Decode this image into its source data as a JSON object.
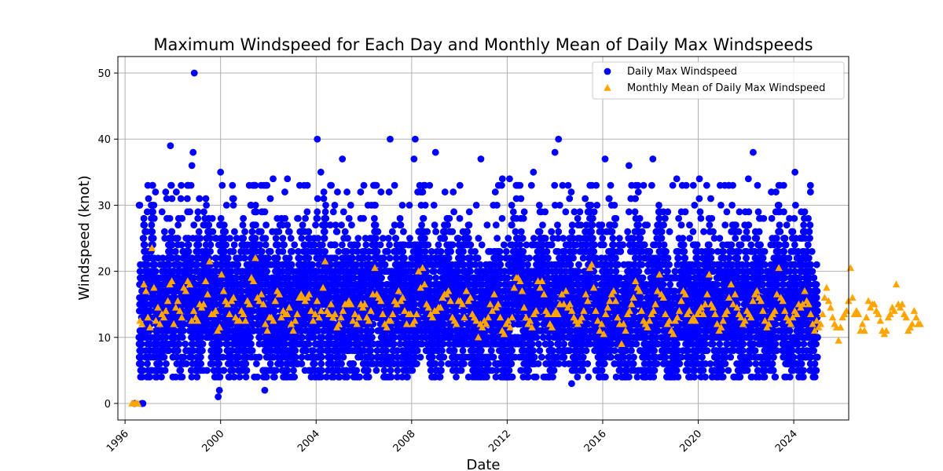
{
  "chart_data": {
    "type": "scatter",
    "title": "Maximum Windspeed for Each Day and Monthly Mean of Daily Max Windspeeds",
    "xlabel": "Date",
    "ylabel": "Windspeed (knot)",
    "xlim": [
      1995.7,
      2026.3
    ],
    "ylim": [
      -2.5,
      52.5
    ],
    "x_ticks": [
      "1996",
      "2000",
      "2004",
      "2008",
      "2012",
      "2016",
      "2020",
      "2024"
    ],
    "y_ticks": [
      "0",
      "10",
      "20",
      "30",
      "40",
      "50"
    ],
    "grid": true,
    "legend_position": "top-right",
    "series": [
      {
        "name": "Daily Max Windspeed",
        "marker": "circle",
        "color": "#0000ff",
        "note_points": [
          {
            "x": 1996.4,
            "y": 0
          },
          {
            "x": 1996.7,
            "y": 0
          },
          {
            "x": 1996.75,
            "y": 0
          },
          {
            "x": 1997.9,
            "y": 39
          },
          {
            "x": 1998.9,
            "y": 50
          },
          {
            "x": 1998.85,
            "y": 38
          },
          {
            "x": 1998.8,
            "y": 36
          },
          {
            "x": 1999.9,
            "y": 1
          },
          {
            "x": 1999.95,
            "y": 2
          },
          {
            "x": 2000,
            "y": 35
          },
          {
            "x": 2001.85,
            "y": 2
          },
          {
            "x": 2002.2,
            "y": 34
          },
          {
            "x": 2002.8,
            "y": 34
          },
          {
            "x": 2004.05,
            "y": 40
          },
          {
            "x": 2004.2,
            "y": 35
          },
          {
            "x": 2005.1,
            "y": 37
          },
          {
            "x": 2006,
            "y": 33
          },
          {
            "x": 2007.1,
            "y": 40
          },
          {
            "x": 2008.15,
            "y": 40
          },
          {
            "x": 2008.1,
            "y": 37
          },
          {
            "x": 2009,
            "y": 38
          },
          {
            "x": 2010.9,
            "y": 37
          },
          {
            "x": 2011.8,
            "y": 34
          },
          {
            "x": 2012.1,
            "y": 34
          },
          {
            "x": 2013.1,
            "y": 35
          },
          {
            "x": 2014,
            "y": 38
          },
          {
            "x": 2014.15,
            "y": 40
          },
          {
            "x": 2014.7,
            "y": 3
          },
          {
            "x": 2016.1,
            "y": 37
          },
          {
            "x": 2017.1,
            "y": 36
          },
          {
            "x": 2018.1,
            "y": 37
          },
          {
            "x": 2019.1,
            "y": 34
          },
          {
            "x": 2020.05,
            "y": 34
          },
          {
            "x": 2022.1,
            "y": 34
          },
          {
            "x": 2022.3,
            "y": 38
          },
          {
            "x": 2024.05,
            "y": 35
          },
          {
            "x": 2024.7,
            "y": 32
          }
        ]
      },
      {
        "name": "Monthly Mean of Daily Max Windspeed",
        "marker": "triangle",
        "color": "#ffa500",
        "monthly_values": [
          0,
          0,
          0,
          0,
          12.5,
          12,
          18,
          17,
          13,
          11.5,
          23.5,
          17.5,
          12.5,
          14.5,
          12,
          13.5,
          13,
          14,
          15.5,
          18,
          18.5,
          12,
          14.5,
          15.5,
          14,
          13,
          17.5,
          17,
          18.5,
          18,
          12.5,
          14,
          13,
          12.5,
          15,
          14.5,
          15,
          18.5,
          16.5,
          21.5,
          13.5,
          13.5,
          14,
          11,
          11.5,
          19.5,
          17,
          15.5,
          15,
          13.5,
          15.5,
          16,
          13,
          12.5,
          12.5,
          14,
          13.5,
          12.5,
          15.5,
          15,
          19,
          18.5,
          22,
          16,
          15.5,
          16.5,
          15,
          12,
          11,
          13,
          13,
          12.5,
          15.5,
          17,
          16.5,
          13,
          14,
          13.5,
          13.5,
          14.5,
          12,
          11,
          12.5,
          13.5,
          16,
          16.5,
          16,
          15.5,
          16,
          16.5,
          14,
          12.5,
          13.5,
          15.5,
          13,
          14,
          17.5,
          21.5,
          14,
          13.5,
          15,
          13,
          13.5,
          11.5,
          12,
          13,
          14,
          15,
          15,
          15.5,
          15,
          12.5,
          13.5,
          12,
          13,
          15,
          14.5,
          15,
          13,
          12.5,
          14,
          16.5,
          20.5,
          16.5,
          16,
          15.5,
          13.5,
          12,
          11.5,
          12.5,
          12.5,
          13.5,
          15.5,
          15,
          17,
          15.5,
          16,
          14,
          12,
          13.5,
          13.5,
          12,
          12.5,
          13.5,
          20,
          17.5,
          20.5,
          18,
          15,
          14.5,
          13.5,
          13,
          14,
          14,
          14.5,
          14.5,
          16,
          16.5,
          16.5,
          17,
          15.5,
          13,
          12.5,
          12,
          15.5,
          15.5,
          15,
          13,
          17,
          15.5,
          16,
          13.5,
          13,
          12.5,
          10,
          12,
          11.5,
          12.5,
          12,
          13,
          15,
          14,
          16.5,
          14.5,
          15,
          13,
          11,
          10.5,
          12,
          12.5,
          11.5,
          13,
          17.5,
          19,
          19,
          18.5,
          17,
          14.5,
          13,
          12,
          12.5,
          11.5,
          13.5,
          14,
          18.5,
          17.5,
          18.5,
          16.5,
          14,
          13.5,
          12,
          11.5,
          13.5,
          14,
          13.5,
          15,
          16.5,
          15,
          17,
          14.5,
          15,
          14,
          13,
          12.5,
          12,
          12.5,
          13,
          14,
          16.5,
          15.5,
          20.5,
          21,
          17.5,
          14,
          12.5,
          11,
          12,
          10.5,
          13.5,
          14.5,
          15.5,
          16.5,
          17,
          15.5,
          13,
          12,
          9,
          12,
          11,
          13.5,
          14,
          15,
          16,
          18.5,
          17.5,
          17,
          14,
          12.5,
          12,
          11.5,
          12.5,
          13.5,
          14,
          15,
          17,
          19.5,
          16.5,
          16,
          13.5,
          12,
          12.5,
          11,
          10.5,
          12.5,
          13,
          14,
          15.5,
          17,
          16.5,
          13.5,
          14,
          12.5,
          13,
          12.5,
          13.5,
          14,
          14.5,
          13.5,
          15,
          16.5,
          19.5,
          15,
          14.5,
          13.5,
          12,
          11,
          11.5,
          12.5,
          13.5,
          14,
          16,
          18,
          15,
          16.5,
          14.5,
          13.5,
          13,
          12,
          12.5,
          14,
          13.5,
          13,
          15.5,
          16.5,
          17,
          16,
          15.5,
          14,
          12.5,
          11.5,
          12,
          13,
          13.5,
          14,
          16.5,
          20.5,
          16,
          15.5,
          14,
          13,
          12.5,
          12,
          13,
          14,
          13.5,
          15,
          14.5,
          15,
          17,
          15.5,
          15,
          13.5,
          12,
          11,
          12.5,
          11.5,
          12,
          13.5,
          16,
          17.5,
          15.5,
          14.5,
          13,
          12,
          11.5,
          9.5,
          11.5,
          13,
          13.5,
          14,
          15.5,
          20.5,
          16,
          13.5,
          14,
          13.5,
          11,
          12,
          11,
          13,
          15.5,
          14.5,
          15,
          15,
          14,
          13.5,
          12.5,
          11,
          10.5,
          11,
          13,
          13.5,
          14.5,
          14,
          18,
          15,
          14.5,
          15,
          13.5,
          13,
          11,
          11.5,
          12,
          14,
          13,
          12,
          12
        ]
      }
    ]
  }
}
